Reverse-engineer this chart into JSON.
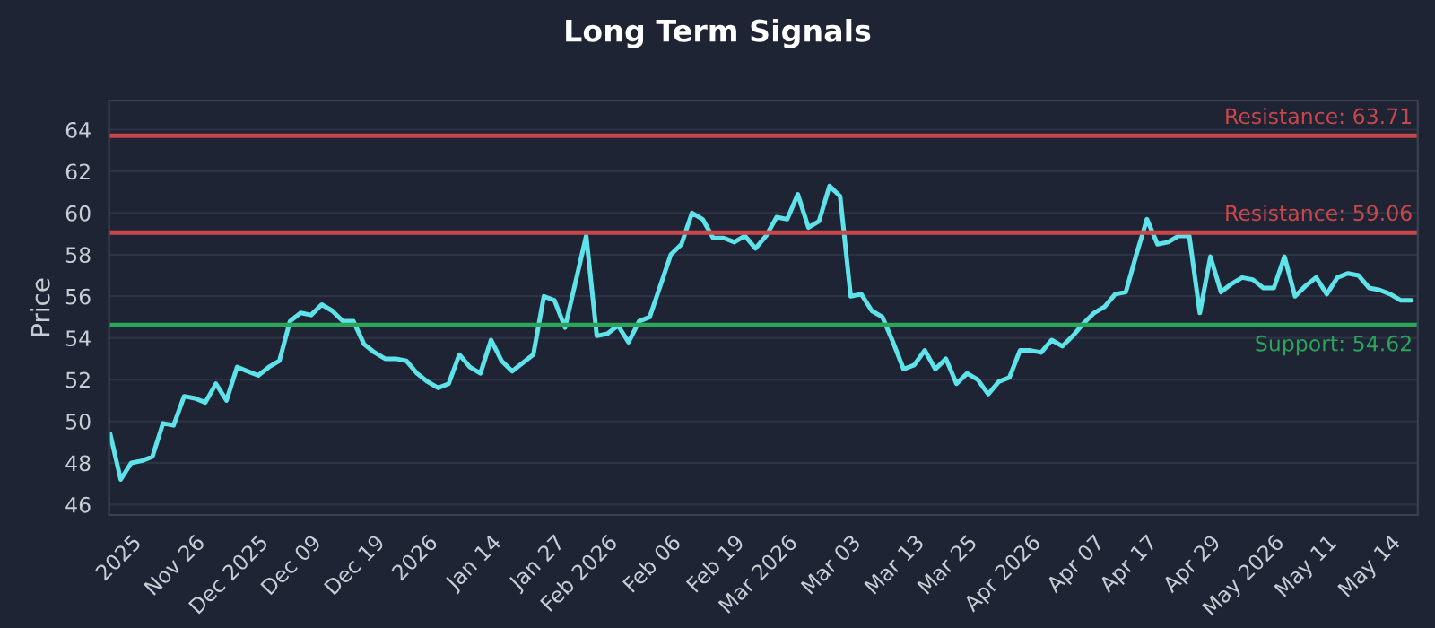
{
  "chart_data": {
    "type": "line",
    "title": "Long Term Signals",
    "ylabel": "Price",
    "categories": [
      null,
      null,
      "2025",
      null,
      null,
      null,
      null,
      null,
      "Nov 26",
      null,
      null,
      null,
      null,
      null,
      "Dec 2025",
      null,
      null,
      null,
      null,
      "Dec 09",
      null,
      null,
      null,
      null,
      null,
      "Dec 19",
      null,
      null,
      null,
      null,
      "2026",
      null,
      null,
      null,
      null,
      null,
      "Jan 14",
      null,
      null,
      null,
      null,
      null,
      "Jan 27",
      null,
      null,
      null,
      null,
      "Feb 2026",
      null,
      null,
      null,
      null,
      null,
      "Feb 06",
      null,
      null,
      null,
      null,
      null,
      "Feb 19",
      null,
      null,
      null,
      null,
      "Mar 2026",
      null,
      null,
      null,
      null,
      null,
      "Mar 03",
      null,
      null,
      null,
      null,
      null,
      "Mar 13",
      null,
      null,
      null,
      null,
      "Mar 25",
      null,
      null,
      null,
      null,
      null,
      "Apr 2026",
      null,
      null,
      null,
      null,
      null,
      "Apr 07",
      null,
      null,
      null,
      null,
      "Apr 17",
      null,
      null,
      null,
      null,
      null,
      "Apr 29",
      null,
      null,
      null,
      null,
      null,
      "May 2026",
      null,
      null,
      null,
      null,
      "May 11",
      null,
      null,
      null,
      null,
      null,
      "May 14",
      null,
      null
    ],
    "series": [
      {
        "color": "#5fe3ea",
        "values": [
          49.4,
          47.2,
          48.0,
          48.1,
          48.3,
          49.9,
          49.8,
          51.2,
          51.1,
          50.9,
          51.8,
          51.0,
          52.6,
          52.4,
          52.2,
          52.6,
          52.9,
          54.8,
          55.2,
          55.1,
          55.6,
          55.3,
          54.8,
          54.8,
          53.7,
          53.3,
          53.0,
          53.0,
          52.9,
          52.3,
          51.9,
          51.6,
          51.8,
          53.2,
          52.6,
          52.3,
          53.9,
          52.9,
          52.4,
          52.8,
          53.2,
          56.0,
          55.8,
          54.5,
          56.7,
          58.9,
          54.1,
          54.2,
          54.6,
          53.8,
          54.8,
          55.0,
          56.5,
          58.0,
          58.5,
          60.0,
          59.7,
          58.8,
          58.8,
          58.6,
          58.9,
          58.3,
          58.9,
          59.8,
          59.7,
          60.9,
          59.3,
          59.6,
          61.3,
          60.8,
          56.0,
          56.1,
          55.3,
          55.0,
          53.8,
          52.5,
          52.7,
          53.4,
          52.5,
          53.0,
          51.8,
          52.3,
          52.0,
          51.3,
          51.9,
          52.1,
          53.4,
          53.4,
          53.3,
          53.9,
          53.6,
          54.1,
          54.7,
          55.2,
          55.5,
          56.1,
          56.2,
          58.0,
          59.7,
          58.5,
          58.6,
          58.9,
          58.9,
          55.2,
          57.9,
          56.2,
          56.6,
          56.9,
          56.8,
          56.4,
          56.4,
          57.9,
          56.0,
          56.5,
          56.9,
          56.1,
          56.9,
          57.1,
          57.0,
          56.4,
          56.3,
          56.1,
          55.8,
          55.8
        ]
      }
    ],
    "ylim": [
      45.5,
      65.4
    ],
    "yticks": [
      46,
      48,
      50,
      52,
      54,
      56,
      58,
      60,
      62,
      64
    ],
    "grid": "y",
    "marker": "none",
    "line_style": "solid",
    "ref_lines": [
      {
        "axis": "y",
        "value": 63.71,
        "label": "Resistance: 63.71",
        "color": "#c9474b"
      },
      {
        "axis": "y",
        "value": 59.06,
        "label": "Resistance: 59.06",
        "color": "#c9474b"
      },
      {
        "axis": "y",
        "value": 54.62,
        "label": "Support: 54.62",
        "color": "#2aa55a"
      }
    ]
  }
}
